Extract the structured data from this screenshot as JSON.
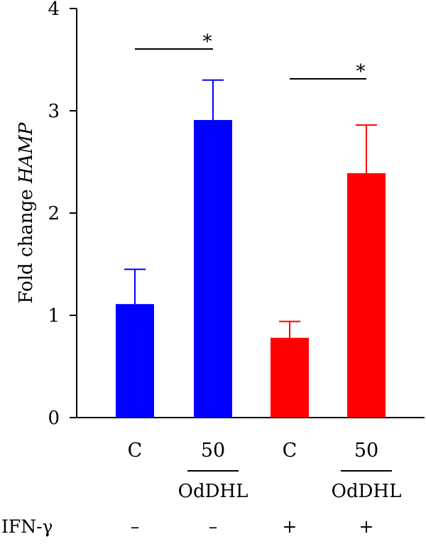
{
  "chart_data": {
    "type": "bar",
    "ylabel_prefix": "Fold change",
    "ylabel_gene": "HAMP",
    "ylim": [
      0,
      4
    ],
    "yticks": [
      "0",
      "1",
      "2",
      "3",
      "4"
    ],
    "categories": [
      "C",
      "50",
      "C",
      "50"
    ],
    "values": [
      1.11,
      2.91,
      0.78,
      2.39
    ],
    "errors": [
      0.34,
      0.39,
      0.16,
      0.47
    ],
    "colors": [
      "#0000ff",
      "#0000ff",
      "#ff0000",
      "#ff0000"
    ],
    "group_labels": [
      "OdDHL",
      "OdDHL"
    ],
    "ifn_label": "IFN-γ",
    "ifn_signs": [
      "–",
      "–",
      "+",
      "+"
    ],
    "significance": [
      {
        "from": 0,
        "to": 1,
        "label": "*"
      },
      {
        "from": 2,
        "to": 3,
        "label": "*"
      }
    ]
  }
}
